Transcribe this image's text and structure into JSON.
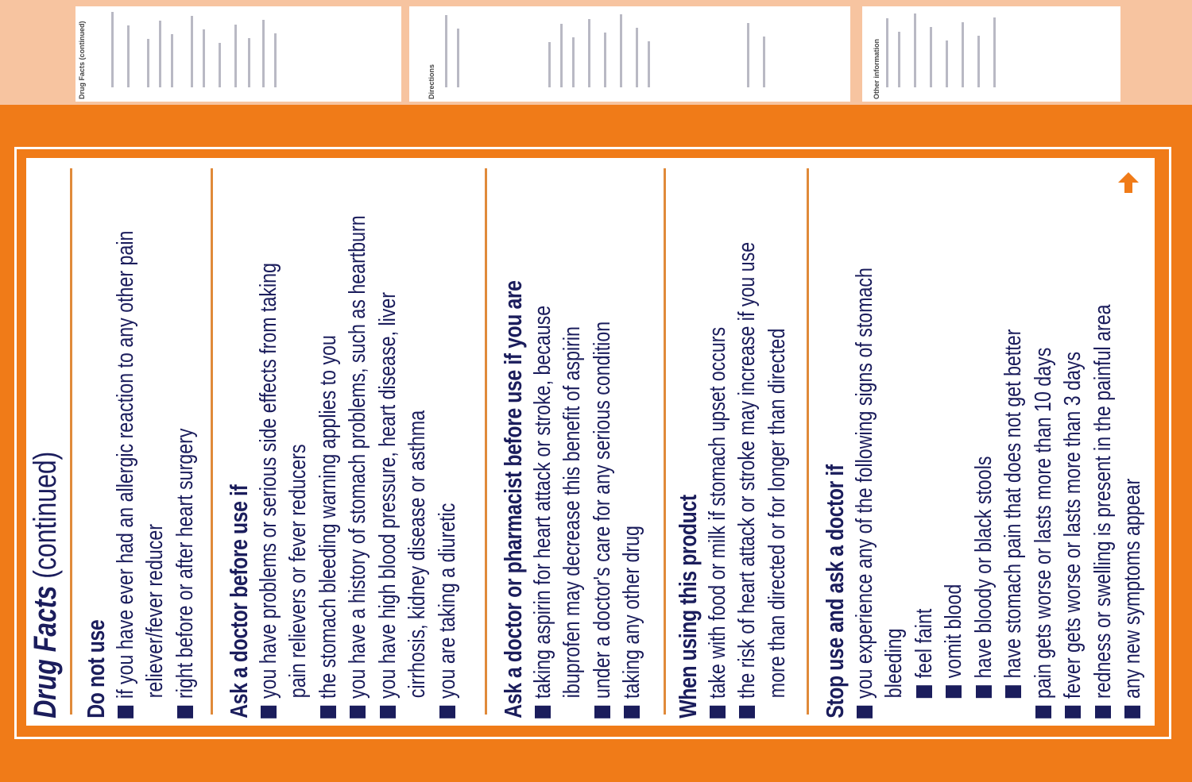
{
  "colors": {
    "box_orange": "#f07b18",
    "text_navy": "#1b1d5c",
    "divider": "#e08a3a"
  },
  "top_strip": {
    "left_heading": "Drug Facts (continued)",
    "middle_heading": "Directions",
    "right_heading": "Other information"
  },
  "title": {
    "bold": "Drug Facts",
    "rest": " (continued)"
  },
  "sections": [
    {
      "heading": "Do not use",
      "lines": [
        {
          "type": "bullet",
          "text": "if you have ever had an allergic reaction to any other pain"
        },
        {
          "type": "cont",
          "text": "reliever/fever reducer"
        },
        {
          "type": "bullet",
          "text": "right before or after heart surgery"
        }
      ]
    },
    {
      "heading": "Ask a doctor before use if",
      "lines": [
        {
          "type": "bullet",
          "text": "you have problems or serious side effects from taking"
        },
        {
          "type": "cont",
          "text": "pain relievers or fever reducers"
        },
        {
          "type": "bullet",
          "text": "the stomach bleeding warning applies to you"
        },
        {
          "type": "bullet",
          "text": "you have a history of stomach problems, such as heartburn"
        },
        {
          "type": "bullet",
          "text": "you have high blood pressure, heart disease, liver"
        },
        {
          "type": "cont",
          "text": "cirrhosis, kidney disease or asthma"
        },
        {
          "type": "bullet",
          "text": "you are taking a diuretic"
        }
      ]
    },
    {
      "heading": "Ask a doctor or pharmacist before use if you are",
      "lines": [
        {
          "type": "bullet",
          "text": "taking aspirin for heart attack or stroke, because"
        },
        {
          "type": "cont",
          "text": "ibuprofen may decrease this benefit of aspirin"
        },
        {
          "type": "bullet",
          "text": "under a doctor's care for any serious condition"
        },
        {
          "type": "bullet",
          "text": "taking any other drug"
        }
      ]
    },
    {
      "heading": "When using this product",
      "lines": [
        {
          "type": "bullet",
          "text": "take with food or milk if stomach upset occurs"
        },
        {
          "type": "bullet",
          "text": "the risk of heart attack or stroke may increase if you use"
        },
        {
          "type": "cont",
          "text": "more than directed or for longer than directed"
        }
      ]
    },
    {
      "heading": "Stop use and ask a doctor if",
      "lines": [
        {
          "type": "bullet",
          "text": "you experience any of the following signs of stomach"
        },
        {
          "type": "cont",
          "text": "bleeding"
        },
        {
          "type": "sub",
          "text": "feel faint"
        },
        {
          "type": "sub",
          "text": "vomit blood"
        },
        {
          "type": "sub",
          "text": "have bloody or black stools"
        },
        {
          "type": "sub",
          "text": "have stomach pain that does not get better"
        },
        {
          "type": "bullet",
          "text": "pain gets worse or lasts more than 10 days"
        },
        {
          "type": "bullet",
          "text": "fever gets worse or lasts more than 3 days"
        },
        {
          "type": "bullet",
          "text": "redness or swelling is present in the painful area"
        },
        {
          "type": "bullet",
          "text": "any new symptoms appear"
        }
      ]
    }
  ],
  "icons": {
    "continue_arrow": "arrow-up-icon"
  }
}
